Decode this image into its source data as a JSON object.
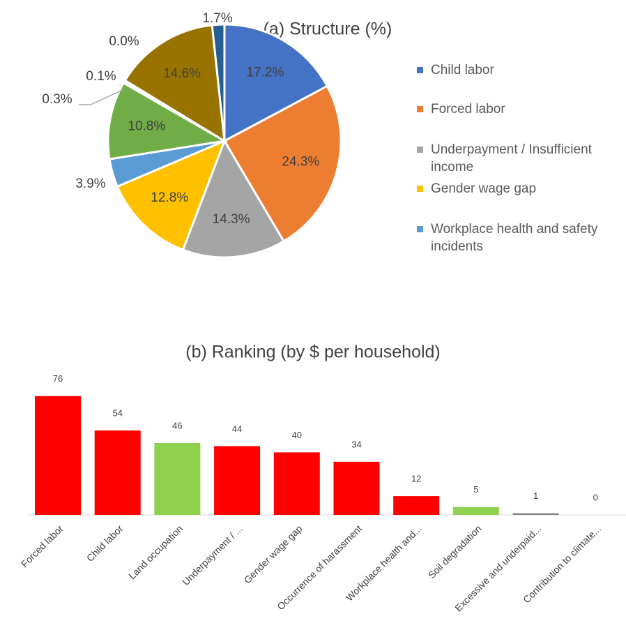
{
  "chart_data": [
    {
      "type": "pie",
      "title": "(a) Structure (%)",
      "categories": [
        "Child labor",
        "Forced labor",
        "Underpayment / Insufficient income",
        "Gender wage gap",
        "Workplace health and safety incidents",
        null,
        null,
        null,
        null,
        null,
        null
      ],
      "values": [
        17.2,
        24.3,
        14.3,
        12.8,
        3.9,
        10.8,
        0.3,
        0.1,
        0.0,
        14.6,
        1.7
      ],
      "value_labels": [
        "17.2%",
        "24.3%",
        "14.3%",
        "12.8%",
        "3.9%",
        "10.8%",
        "0.3%",
        "0.1%",
        "0.0%",
        "14.6%",
        "1.7%"
      ],
      "colors": [
        "#4472c4",
        "#ed7d31",
        "#a5a5a5",
        "#ffc000",
        "#5b9bd5",
        "#70ad47",
        "#264478",
        "#9e480e",
        "#636363",
        "#997300",
        "#255e91"
      ],
      "legend": "right"
    },
    {
      "type": "bar",
      "title": "(b) Ranking (by $ per household)",
      "categories": [
        "Forced labor",
        "Child labor",
        "Land occupation",
        "Underpayment / ...",
        "Gender wage gap",
        "Occurrence of harassment",
        "Workplace health and...",
        "Soil degradation",
        "Excessive and underpaid...",
        "Contribution to climate..."
      ],
      "values": [
        76,
        54,
        46,
        44,
        40,
        34,
        12,
        5,
        1,
        0
      ],
      "colors": [
        "#ff0000",
        "#ff0000",
        "#92d050",
        "#ff0000",
        "#ff0000",
        "#ff0000",
        "#ff0000",
        "#92d050",
        "#7f7f7f",
        "#7f7f7f"
      ]
    }
  ]
}
